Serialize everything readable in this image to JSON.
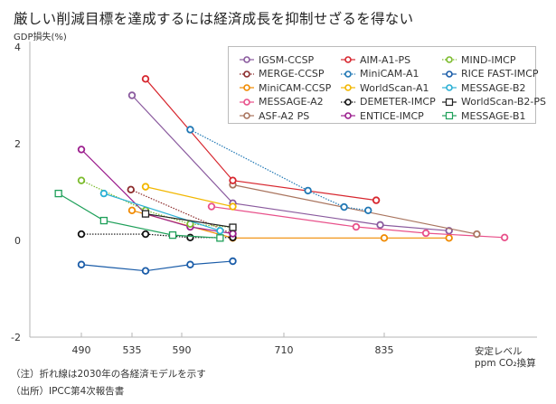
{
  "header": {
    "title": "厳しい削減目標を達成するには経済成長を抑制せざるを得ない",
    "y_axis_label": "GDP損失(%)"
  },
  "x_unit": {
    "line1": "安定レベル",
    "line2": "ppm CO₂換算"
  },
  "notes": {
    "note": "（注）折れ線は2030年の各経済モデルを示す",
    "source": "（出所）IPCC第4次報告書"
  },
  "chart_data": {
    "type": "line",
    "title": "厳しい削減目標を達成するには経済成長を抑制せざるを得ない",
    "xlabel": "安定レベル ppm CO₂換算",
    "ylabel": "GDP損失(%)",
    "ylim": [
      -2,
      4
    ],
    "yticks": [
      "4",
      "2",
      "0",
      "-2"
    ],
    "ytick_values": [
      4,
      2,
      0,
      -2
    ],
    "xticks": [
      "490",
      "535",
      "590",
      "710",
      "835"
    ],
    "xtick_values": [
      490,
      535,
      590,
      710,
      835
    ],
    "xlim": [
      445,
      1000
    ],
    "grid": false,
    "legend_position": "top-right",
    "series": [
      {
        "name": "IGSM-CCSP",
        "color": "#8a5a9e",
        "style": "solid",
        "marker": "circle",
        "x": [
          535,
          650,
          830,
          905
        ],
        "y": [
          3.0,
          0.77,
          0.32,
          0.2
        ]
      },
      {
        "name": "MERGE-CCSP",
        "color": "#8b2a2a",
        "style": "dotted",
        "marker": "circle",
        "x": [
          534,
          650
        ],
        "y": [
          1.05,
          0.13
        ]
      },
      {
        "name": "MiniCAM-CCSP",
        "color": "#f08a00",
        "style": "solid",
        "marker": "circle",
        "x": [
          535,
          650,
          835,
          905
        ],
        "y": [
          0.62,
          0.05,
          0.05,
          0.05
        ]
      },
      {
        "name": "MESSAGE-A2",
        "color": "#e8508a",
        "style": "solid",
        "marker": "circle",
        "x": [
          625,
          800,
          880,
          965
        ],
        "y": [
          0.7,
          0.28,
          0.15,
          0.06
        ]
      },
      {
        "name": "ASF-A2 PS",
        "color": "#a9745e",
        "style": "solid",
        "marker": "circle",
        "x": [
          650,
          935
        ],
        "y": [
          1.15,
          0.13
        ]
      },
      {
        "name": "AIM-A1-PS",
        "color": "#d7262e",
        "style": "solid",
        "marker": "circle",
        "x": [
          550,
          650,
          825
        ],
        "y": [
          3.34,
          1.24,
          0.83
        ]
      },
      {
        "name": "MiniCAM-A1",
        "color": "#1f77b4",
        "style": "dotted",
        "marker": "circle",
        "x": [
          600,
          740,
          785,
          815
        ],
        "y": [
          2.29,
          1.03,
          0.69,
          0.62
        ]
      },
      {
        "name": "WorldScan-A1",
        "color": "#f2b700",
        "style": "solid",
        "marker": "circle",
        "x": [
          550,
          650
        ],
        "y": [
          1.11,
          0.7
        ]
      },
      {
        "name": "DEMETER-IMCP",
        "color": "#111111",
        "style": "dotted",
        "marker": "circle",
        "x": [
          490,
          550,
          600,
          650
        ],
        "y": [
          0.13,
          0.13,
          0.06,
          0.06
        ]
      },
      {
        "name": "ENTICE-IMCP",
        "color": "#9c1f8e",
        "style": "solid",
        "marker": "circle",
        "x": [
          490,
          550,
          600,
          650
        ],
        "y": [
          1.88,
          0.55,
          0.28,
          0.14
        ]
      },
      {
        "name": "MIND-IMCP",
        "color": "#7bbb2c",
        "style": "dotted",
        "marker": "circle",
        "x": [
          490,
          550,
          600,
          650
        ],
        "y": [
          1.24,
          0.62,
          0.34,
          0.27
        ]
      },
      {
        "name": "RICE FAST-IMCP",
        "color": "#1a5ca8",
        "style": "solid",
        "marker": "circle",
        "x": [
          490,
          550,
          600,
          650
        ],
        "y": [
          -0.5,
          -0.63,
          -0.5,
          -0.43
        ]
      },
      {
        "name": "MESSAGE-B2",
        "color": "#2ab0d4",
        "style": "solid",
        "marker": "circle",
        "x": [
          510,
          635
        ],
        "y": [
          0.97,
          0.2
        ]
      },
      {
        "name": "WorldScan-B2-PS",
        "color": "#222222",
        "style": "solid",
        "marker": "square",
        "x": [
          550,
          650
        ],
        "y": [
          0.55,
          0.27
        ]
      },
      {
        "name": "MESSAGE-B1",
        "color": "#1fa05a",
        "style": "solid",
        "marker": "square",
        "x": [
          470,
          510,
          580,
          635
        ],
        "y": [
          0.97,
          0.41,
          0.11,
          0.05
        ]
      }
    ],
    "legend_columns": [
      [
        "IGSM-CCSP",
        "MERGE-CCSP",
        "MiniCAM-CCSP",
        "MESSAGE-A2",
        "ASF-A2 PS"
      ],
      [
        "AIM-A1-PS",
        "MiniCAM-A1",
        "WorldScan-A1",
        "DEMETER-IMCP",
        "ENTICE-IMCP"
      ],
      [
        "MIND-IMCP",
        "RICE FAST-IMCP",
        "MESSAGE-B2",
        "WorldScan-B2-PS",
        "MESSAGE-B1"
      ]
    ]
  }
}
